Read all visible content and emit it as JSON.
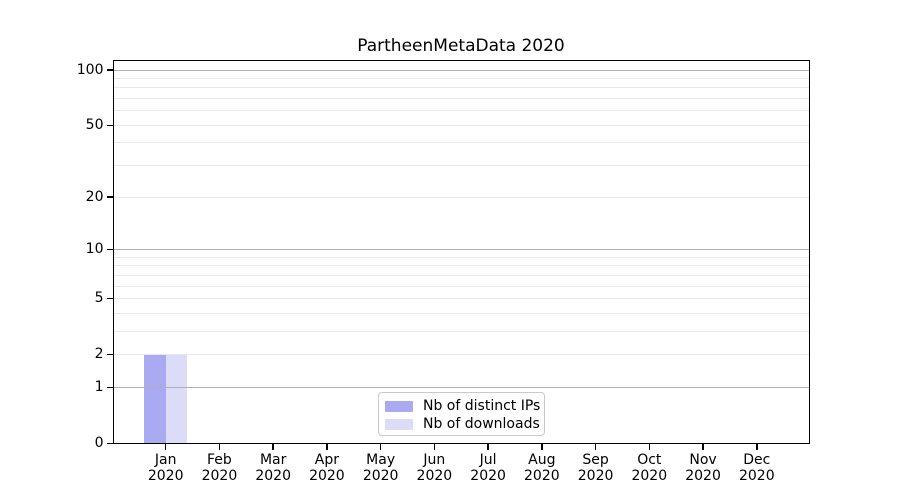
{
  "chart_data": {
    "type": "bar",
    "title": "PartheenMetaData 2020",
    "categories": [
      "Jan",
      "Feb",
      "Mar",
      "Apr",
      "May",
      "Jun",
      "Jul",
      "Aug",
      "Sep",
      "Oct",
      "Nov",
      "Dec"
    ],
    "category_year": "2020",
    "series": [
      {
        "name": "Nb of distinct IPs",
        "color": "#a9aaf2",
        "values": [
          2,
          0,
          0,
          0,
          0,
          0,
          0,
          0,
          0,
          0,
          0,
          0
        ]
      },
      {
        "name": "Nb of downloads",
        "color": "#dcdcf8",
        "values": [
          2,
          0,
          0,
          0,
          0,
          0,
          0,
          0,
          0,
          0,
          0,
          0
        ]
      }
    ],
    "xlabel": "",
    "ylabel": "",
    "y_axis": {
      "scale": "log1p",
      "tick_values": [
        0,
        1,
        2,
        5,
        10,
        20,
        50,
        100
      ],
      "major_gridlines": [
        1,
        10,
        100
      ],
      "minor_gridlines": [
        2,
        3,
        4,
        5,
        6,
        7,
        8,
        9,
        20,
        30,
        40,
        50,
        60,
        70,
        80,
        90
      ],
      "ylim": [
        0,
        114
      ]
    },
    "legend": {
      "position": "lower center"
    },
    "colors": {
      "major_grid": "#b0b0b0",
      "minor_grid": "#e9e9e9",
      "axis": "#000000",
      "text": "#000000",
      "background": "#ffffff"
    }
  }
}
